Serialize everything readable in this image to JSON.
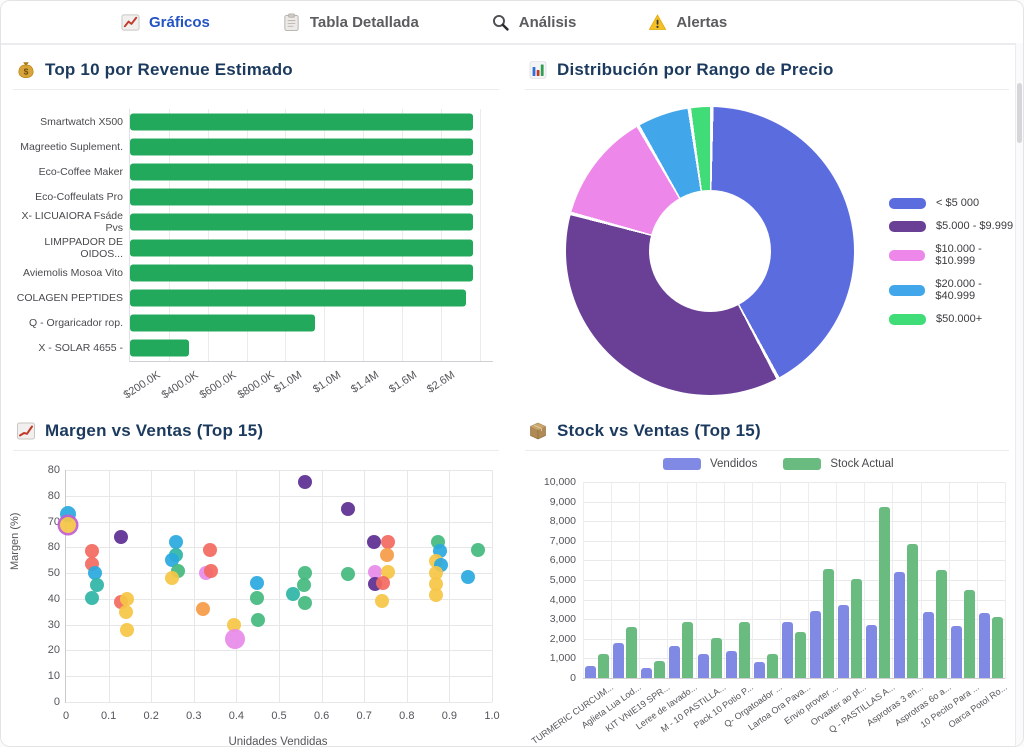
{
  "tabs": [
    {
      "label": "Gráficos",
      "active": true
    },
    {
      "label": "Tabla Detallada",
      "active": false
    },
    {
      "label": "Análisis",
      "active": false
    },
    {
      "label": "Alertas",
      "active": false
    }
  ],
  "colors": {
    "active_tab": "#2453c4",
    "title_navy": "#1b3a5e",
    "revenue_bar_green": "#23a95b",
    "vendidos_blue": "#8089e4",
    "stock_green": "#69bb80"
  },
  "palette": {
    "cyan": "#29a8e0",
    "teal": "#2eb5a5",
    "green": "#43b97e",
    "salmon": "#f2695f",
    "orange": "#f59b47",
    "yellow": "#f6c545",
    "purple": "#5c2d91",
    "orchid": "#e78ae9"
  },
  "chart_data": [
    {
      "type": "bar",
      "orientation": "horizontal",
      "title": "Top 10 por Revenue Estimado",
      "categories": [
        "Smartwatch X500",
        "Magreetio Suplement.",
        "Eco-Coffee Maker",
        "Eco-Coffeulats Pro",
        "X- LICUAIORA Fsáde Pvs",
        "LIMPPADOR DE OIDOS...",
        "Aviemolis Mosoa Vito",
        "COLAGEN PEPTIDES",
        "Q - Orgaricador rop.",
        "X - SOLAR 4655 -"
      ],
      "values": [
        1800000,
        1800000,
        1800000,
        1800000,
        1800000,
        1800000,
        1800000,
        1765000,
        970000,
        310000
      ],
      "bar_color": "#23a95b",
      "xticks": [
        "$200.0K",
        "$400.0K",
        "$600.0K",
        "$800.0K",
        "$1.0M",
        "$1.0M",
        "$1.4M",
        "$1.6M",
        "$2.6M"
      ],
      "xmax": 1870000,
      "grid": true
    },
    {
      "type": "pie",
      "title": "Distribución por Rango de Precio",
      "donut": true,
      "legend_position": "right",
      "slices": [
        {
          "label": "< $5 000",
          "value": 42,
          "color": "#5b6cdf"
        },
        {
          "label": "$5.000 - $9.999",
          "value": 37,
          "color": "#6a4096"
        },
        {
          "label": "$10.000 - $10.999",
          "value": 12.5,
          "color": "#ee87ea"
        },
        {
          "label": "$20.000 - $40.999",
          "value": 6,
          "color": "#41a7ea"
        },
        {
          "label": "$50.000+",
          "value": 2.5,
          "color": "#3fdc78"
        }
      ]
    },
    {
      "type": "scatter",
      "title": "Margen vs Ventas (Top 15)",
      "xlabel": "Unidades Vendidas",
      "ylabel": "Margen (%)",
      "xticks": [
        "0",
        "0.1",
        "0.2",
        "0.3",
        "0.4",
        "0.5",
        "0.6",
        "0.7",
        "0.8",
        "0.9",
        "1.0"
      ],
      "yticks": [
        "80",
        "80",
        "70",
        "80",
        "50",
        "40",
        "30",
        "20",
        "10",
        "0"
      ],
      "xlim": [
        0,
        1.0
      ],
      "ylim": [
        0,
        90
      ],
      "grid": true,
      "points": [
        {
          "x": 0.005,
          "y": 73,
          "c": "cyan",
          "r": 8
        },
        {
          "x": 0.005,
          "y": 68.5,
          "c": "yellow",
          "r": 8,
          "ring": "#c25ed1"
        },
        {
          "x": 0.06,
          "y": 58.5,
          "c": "salmon"
        },
        {
          "x": 0.06,
          "y": 53.5,
          "c": "salmon"
        },
        {
          "x": 0.068,
          "y": 50,
          "c": "cyan"
        },
        {
          "x": 0.073,
          "y": 45.5,
          "c": "teal"
        },
        {
          "x": 0.06,
          "y": 40.5,
          "c": "teal"
        },
        {
          "x": 0.13,
          "y": 64,
          "c": "purple"
        },
        {
          "x": 0.13,
          "y": 38.7,
          "c": "salmon"
        },
        {
          "x": 0.143,
          "y": 39.8,
          "c": "yellow"
        },
        {
          "x": 0.14,
          "y": 34.8,
          "c": "yellow"
        },
        {
          "x": 0.143,
          "y": 27.8,
          "c": "yellow"
        },
        {
          "x": 0.259,
          "y": 62.2,
          "c": "cyan"
        },
        {
          "x": 0.258,
          "y": 57.2,
          "c": "teal"
        },
        {
          "x": 0.249,
          "y": 55.2,
          "c": "cyan"
        },
        {
          "x": 0.263,
          "y": 51,
          "c": "green"
        },
        {
          "x": 0.249,
          "y": 48,
          "c": "yellow"
        },
        {
          "x": 0.339,
          "y": 58.8,
          "c": "salmon"
        },
        {
          "x": 0.329,
          "y": 50.2,
          "c": "orchid"
        },
        {
          "x": 0.34,
          "y": 51,
          "c": "salmon"
        },
        {
          "x": 0.322,
          "y": 35.9,
          "c": "orange"
        },
        {
          "x": 0.394,
          "y": 30,
          "c": "yellow"
        },
        {
          "x": 0.396,
          "y": 24.5,
          "c": "orchid",
          "r": 10
        },
        {
          "x": 0.449,
          "y": 46.2,
          "c": "cyan"
        },
        {
          "x": 0.449,
          "y": 40.3,
          "c": "green"
        },
        {
          "x": 0.45,
          "y": 32,
          "c": "green"
        },
        {
          "x": 0.533,
          "y": 42,
          "c": "teal"
        },
        {
          "x": 0.56,
          "y": 50,
          "c": "green"
        },
        {
          "x": 0.558,
          "y": 45.3,
          "c": "green"
        },
        {
          "x": 0.561,
          "y": 38.5,
          "c": "green"
        },
        {
          "x": 0.56,
          "y": 85.5,
          "c": "purple"
        },
        {
          "x": 0.661,
          "y": 75,
          "c": "purple"
        },
        {
          "x": 0.661,
          "y": 49.7,
          "c": "green"
        },
        {
          "x": 0.723,
          "y": 62.2,
          "c": "purple"
        },
        {
          "x": 0.755,
          "y": 62.2,
          "c": "salmon"
        },
        {
          "x": 0.753,
          "y": 57,
          "c": "orange"
        },
        {
          "x": 0.725,
          "y": 50.3,
          "c": "orchid"
        },
        {
          "x": 0.755,
          "y": 50.3,
          "c": "yellow"
        },
        {
          "x": 0.725,
          "y": 45.6,
          "c": "purple"
        },
        {
          "x": 0.745,
          "y": 46,
          "c": "salmon"
        },
        {
          "x": 0.742,
          "y": 39,
          "c": "yellow"
        },
        {
          "x": 0.873,
          "y": 62.2,
          "c": "green"
        },
        {
          "x": 0.877,
          "y": 58.5,
          "c": "cyan"
        },
        {
          "x": 0.869,
          "y": 54.6,
          "c": "yellow"
        },
        {
          "x": 0.881,
          "y": 53.3,
          "c": "cyan"
        },
        {
          "x": 0.868,
          "y": 50,
          "c": "yellow"
        },
        {
          "x": 0.868,
          "y": 45.6,
          "c": "yellow"
        },
        {
          "x": 0.869,
          "y": 41.6,
          "c": "yellow"
        },
        {
          "x": 0.943,
          "y": 48.6,
          "c": "cyan"
        },
        {
          "x": 0.966,
          "y": 58.8,
          "c": "green"
        }
      ]
    },
    {
      "type": "bar",
      "orientation": "vertical",
      "title": "Stock vs Ventas (Top 15)",
      "categories": [
        "TURMERIC CURCUM...",
        "Aglieta Lua Lod...",
        "KIT VNIE19 SPR...",
        "Leree de lavado...",
        "M - 10 PASTILLA...",
        "Pack 10 Potio P...",
        "Q- Orgatoador ...",
        "Lartoa Ora Pava...",
        "Envio provter ...",
        "Orvaater ao pt...",
        "Q - PASTILLAS A...",
        "Asprotras 3 en...",
        "Asprotras 6o a...",
        "10 Pecito Para ...",
        "Oarca Potol Ro..."
      ],
      "series": [
        {
          "name": "Vendidos",
          "color": "#8089e4",
          "values": [
            600,
            1800,
            500,
            1650,
            1250,
            1400,
            800,
            2850,
            3400,
            3700,
            2700,
            5400,
            3350,
            2650,
            3300
          ]
        },
        {
          "name": "Stock Actual",
          "color": "#69bb80",
          "values": [
            1250,
            2600,
            850,
            2850,
            2050,
            2850,
            1250,
            2350,
            5550,
            5050,
            8750,
            6850,
            5500,
            4500,
            3100
          ]
        }
      ],
      "yticks": [
        "10,000",
        "9,000",
        "8,000",
        "7,000",
        "6,000",
        "5,000",
        "4,000",
        "3,000",
        "2,000",
        "1,000",
        "0"
      ],
      "ylim": [
        0,
        10000
      ],
      "grid": true,
      "legend_position": "top"
    }
  ]
}
